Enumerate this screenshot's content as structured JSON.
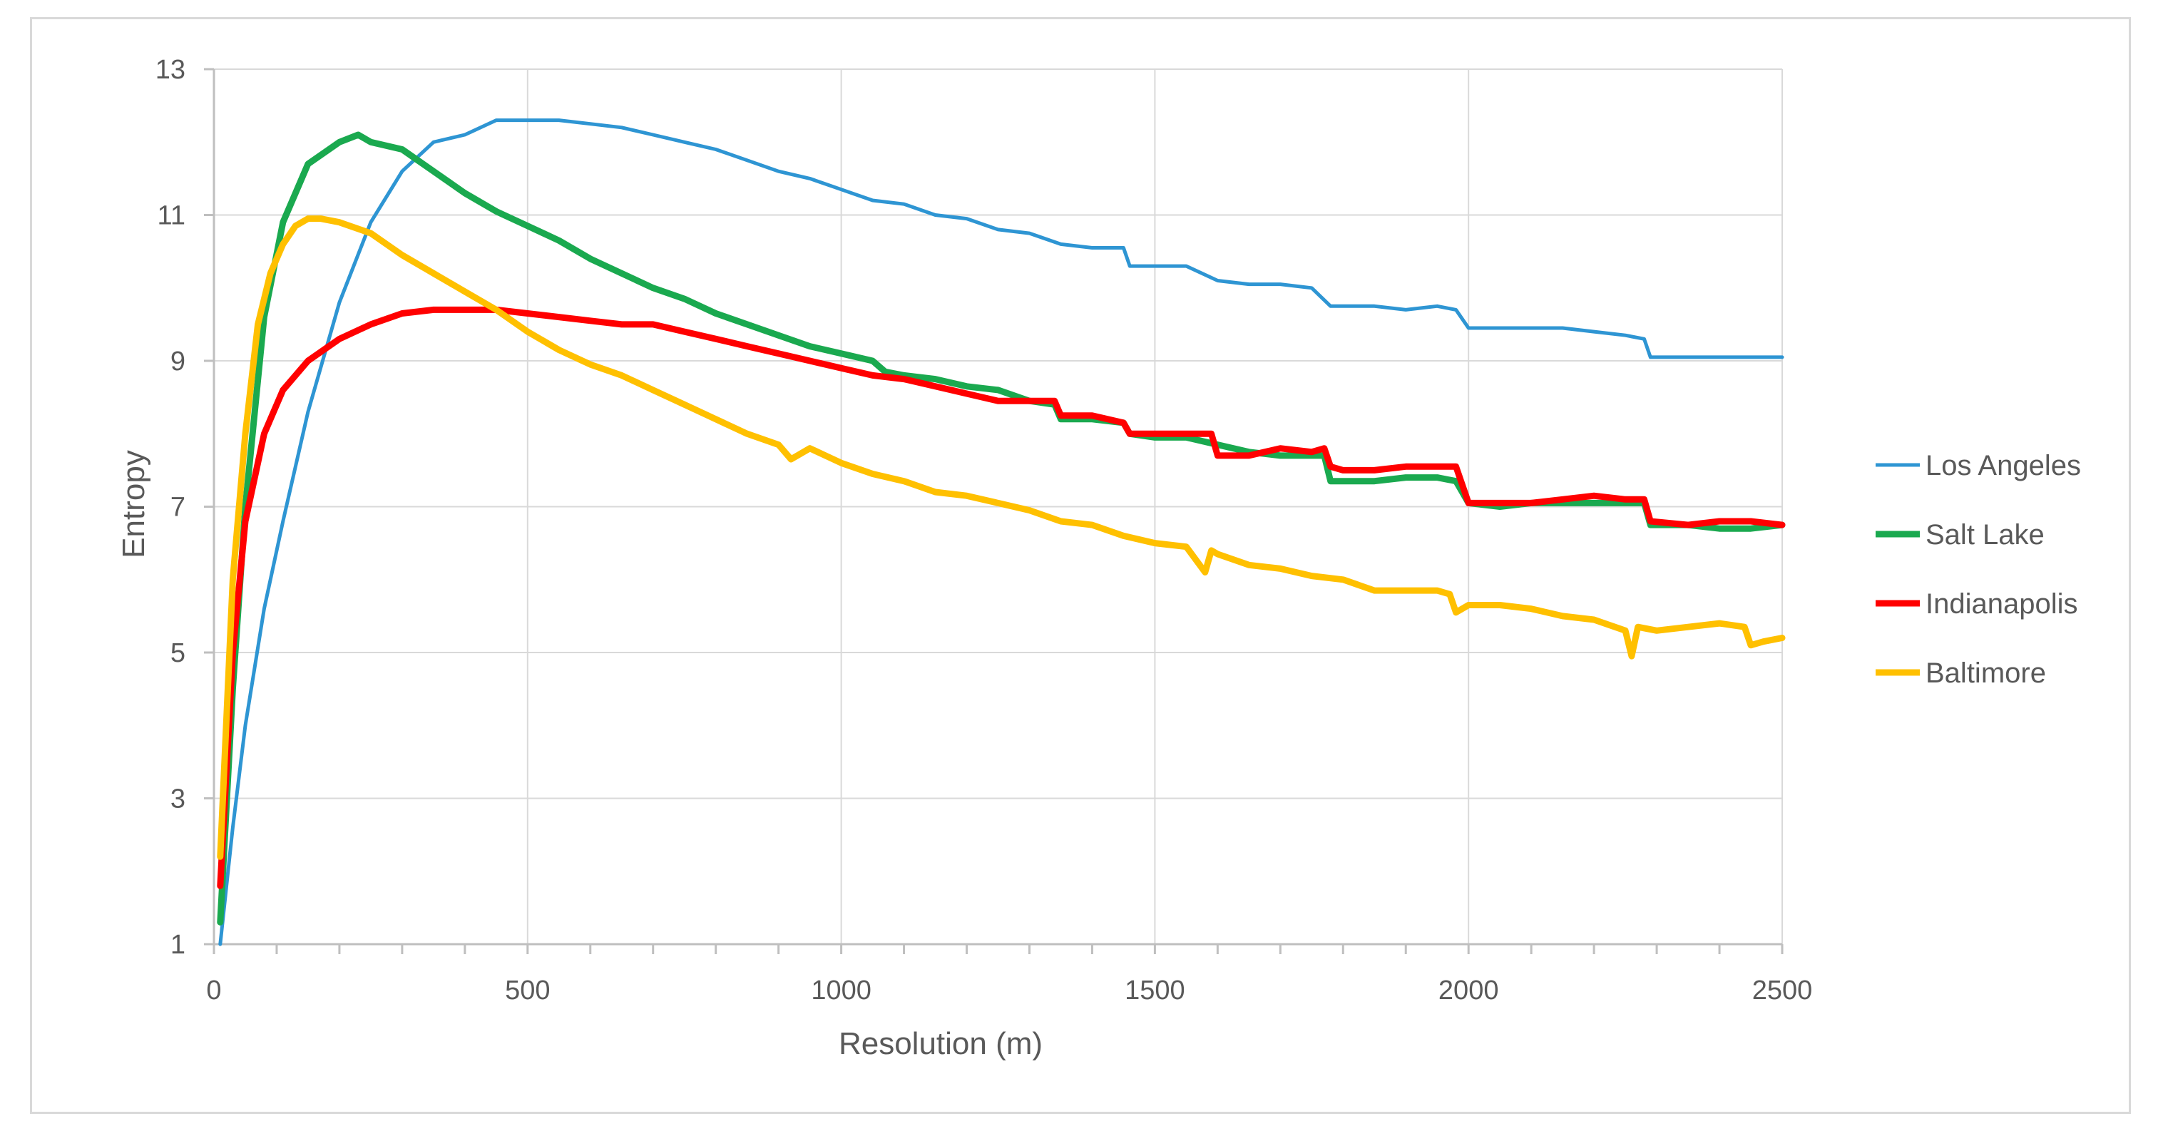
{
  "chart_data": {
    "type": "line",
    "title": "",
    "xlabel": "Resolution (m)",
    "ylabel": "Entropy",
    "xlim": [
      0,
      2500
    ],
    "ylim": [
      1,
      13
    ],
    "x_ticks": [
      0,
      500,
      1000,
      1500,
      2000,
      2500
    ],
    "x_tick_labels": [
      "0",
      "500",
      "1000",
      "1500",
      "2000",
      "2500"
    ],
    "y_ticks": [
      1,
      3,
      5,
      7,
      9,
      11,
      13
    ],
    "y_tick_labels": [
      "1",
      "3",
      "5",
      "7",
      "9",
      "11",
      "13"
    ],
    "x_minor_step": 100,
    "grid": true,
    "legend_position": "right",
    "series": [
      {
        "name": "Los Angeles",
        "color": "#2e95d3",
        "line_width": 5,
        "x": [
          10,
          30,
          50,
          80,
          110,
          150,
          200,
          250,
          300,
          350,
          400,
          450,
          500,
          550,
          600,
          650,
          700,
          750,
          800,
          850,
          900,
          950,
          1000,
          1050,
          1100,
          1150,
          1200,
          1250,
          1300,
          1350,
          1400,
          1450,
          1460,
          1500,
          1550,
          1600,
          1650,
          1700,
          1750,
          1780,
          1800,
          1850,
          1900,
          1950,
          1980,
          2000,
          2050,
          2100,
          2150,
          2200,
          2250,
          2280,
          2290,
          2300,
          2350,
          2400,
          2450,
          2500
        ],
        "y": [
          1,
          2.6,
          4,
          5.6,
          6.8,
          8.3,
          9.8,
          10.9,
          11.6,
          12,
          12.1,
          12.3,
          12.3,
          12.3,
          12.25,
          12.2,
          12.1,
          12.0,
          11.9,
          11.75,
          11.6,
          11.5,
          11.35,
          11.2,
          11.15,
          11.0,
          10.95,
          10.8,
          10.75,
          10.6,
          10.55,
          10.55,
          10.3,
          10.3,
          10.3,
          10.1,
          10.05,
          10.05,
          10.0,
          9.75,
          9.75,
          9.75,
          9.7,
          9.75,
          9.7,
          9.45,
          9.45,
          9.45,
          9.45,
          9.4,
          9.35,
          9.3,
          9.05,
          9.05,
          9.05,
          9.05,
          9.05,
          9.05
        ]
      },
      {
        "name": "Salt Lake",
        "color": "#1aa94f",
        "line_width": 9,
        "x": [
          10,
          30,
          50,
          80,
          110,
          150,
          200,
          230,
          250,
          300,
          350,
          400,
          450,
          500,
          550,
          600,
          650,
          700,
          750,
          800,
          850,
          900,
          950,
          1000,
          1050,
          1070,
          1100,
          1150,
          1200,
          1250,
          1300,
          1340,
          1350,
          1400,
          1450,
          1460,
          1500,
          1550,
          1600,
          1650,
          1700,
          1750,
          1770,
          1780,
          1800,
          1850,
          1900,
          1950,
          1980,
          2000,
          2050,
          2100,
          2150,
          2200,
          2250,
          2280,
          2290,
          2350,
          2400,
          2450,
          2500
        ],
        "y": [
          1.3,
          4.5,
          7.0,
          9.6,
          10.9,
          11.7,
          12.0,
          12.1,
          12.0,
          11.9,
          11.6,
          11.3,
          11.05,
          10.85,
          10.65,
          10.4,
          10.2,
          10.0,
          9.85,
          9.65,
          9.5,
          9.35,
          9.2,
          9.1,
          9.0,
          8.85,
          8.8,
          8.75,
          8.65,
          8.6,
          8.45,
          8.4,
          8.2,
          8.2,
          8.15,
          8.0,
          7.95,
          7.95,
          7.85,
          7.75,
          7.7,
          7.7,
          7.7,
          7.35,
          7.35,
          7.35,
          7.4,
          7.4,
          7.35,
          7.05,
          7.0,
          7.05,
          7.05,
          7.05,
          7.05,
          7.05,
          6.75,
          6.75,
          6.7,
          6.7,
          6.75
        ]
      },
      {
        "name": "Indianapolis",
        "color": "#ff0000",
        "line_width": 9,
        "x": [
          10,
          30,
          50,
          80,
          110,
          150,
          200,
          250,
          300,
          350,
          400,
          450,
          500,
          550,
          600,
          650,
          700,
          750,
          800,
          850,
          900,
          950,
          1000,
          1050,
          1100,
          1150,
          1200,
          1250,
          1300,
          1340,
          1350,
          1400,
          1450,
          1460,
          1500,
          1550,
          1590,
          1600,
          1650,
          1700,
          1750,
          1770,
          1780,
          1800,
          1850,
          1900,
          1950,
          1980,
          2000,
          2050,
          2100,
          2150,
          2200,
          2250,
          2280,
          2290,
          2350,
          2400,
          2450,
          2500
        ],
        "y": [
          1.8,
          5.0,
          6.8,
          8.0,
          8.6,
          9.0,
          9.3,
          9.5,
          9.65,
          9.7,
          9.7,
          9.7,
          9.65,
          9.6,
          9.55,
          9.5,
          9.5,
          9.4,
          9.3,
          9.2,
          9.1,
          9.0,
          8.9,
          8.8,
          8.75,
          8.65,
          8.55,
          8.45,
          8.45,
          8.45,
          8.25,
          8.25,
          8.15,
          8.0,
          8.0,
          8.0,
          8.0,
          7.7,
          7.7,
          7.8,
          7.75,
          7.8,
          7.55,
          7.5,
          7.5,
          7.55,
          7.55,
          7.55,
          7.05,
          7.05,
          7.05,
          7.1,
          7.15,
          7.1,
          7.1,
          6.8,
          6.75,
          6.8,
          6.8,
          6.75
        ]
      },
      {
        "name": "Baltimore",
        "color": "#ffc000",
        "line_width": 9,
        "x": [
          10,
          30,
          50,
          70,
          90,
          110,
          130,
          150,
          170,
          200,
          250,
          300,
          350,
          400,
          450,
          500,
          550,
          600,
          650,
          700,
          750,
          800,
          850,
          900,
          920,
          950,
          1000,
          1050,
          1100,
          1150,
          1200,
          1250,
          1300,
          1350,
          1400,
          1450,
          1500,
          1550,
          1580,
          1590,
          1600,
          1650,
          1700,
          1750,
          1800,
          1850,
          1900,
          1950,
          1970,
          1980,
          2000,
          2050,
          2100,
          2150,
          2200,
          2250,
          2260,
          2270,
          2300,
          2350,
          2400,
          2440,
          2450,
          2470,
          2500
        ],
        "y": [
          2.2,
          6.0,
          8.0,
          9.5,
          10.2,
          10.6,
          10.85,
          10.95,
          10.95,
          10.9,
          10.75,
          10.45,
          10.2,
          9.95,
          9.7,
          9.4,
          9.15,
          8.95,
          8.8,
          8.6,
          8.4,
          8.2,
          8.0,
          7.85,
          7.65,
          7.8,
          7.6,
          7.45,
          7.35,
          7.2,
          7.15,
          7.05,
          6.95,
          6.8,
          6.75,
          6.6,
          6.5,
          6.45,
          6.1,
          6.4,
          6.35,
          6.2,
          6.15,
          6.05,
          6.0,
          5.85,
          5.85,
          5.85,
          5.8,
          5.55,
          5.65,
          5.65,
          5.6,
          5.5,
          5.45,
          5.3,
          4.95,
          5.35,
          5.3,
          5.35,
          5.4,
          5.35,
          5.1,
          5.15,
          5.2
        ]
      }
    ]
  }
}
